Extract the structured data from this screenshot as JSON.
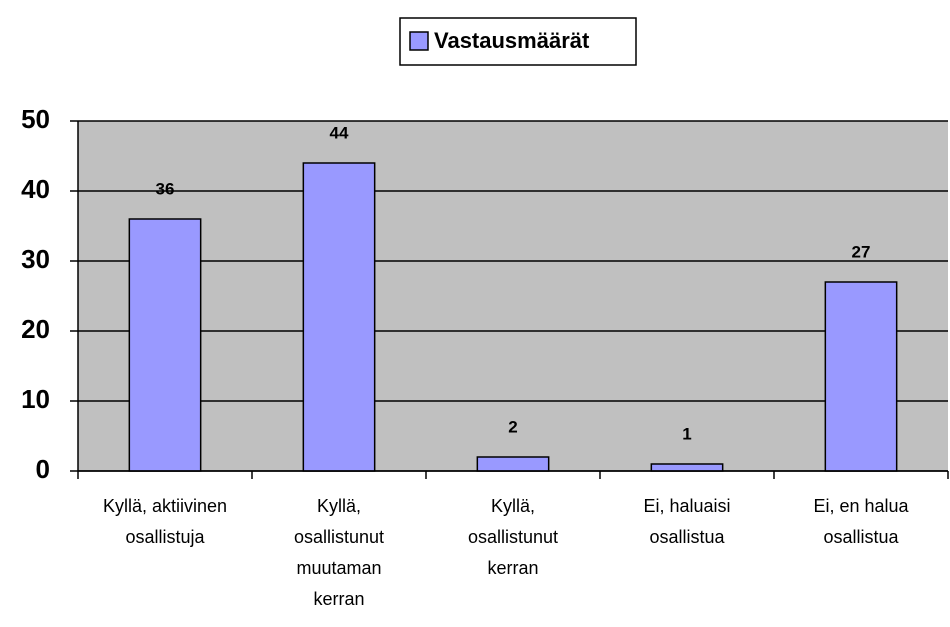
{
  "chart_data": {
    "type": "bar",
    "legend": "Vastausmäärät",
    "categories": [
      "Kyllä, aktiivinen\nosallistuja",
      "Kyllä,\nosallistunut\nmuutaman\nkerran",
      "Kyllä,\nosallistunut\nkerran",
      "Ei, haluaisi\nosallistua",
      "Ei, en halua\nosallistua"
    ],
    "values": [
      36,
      44,
      2,
      1,
      27
    ],
    "color": "#9999ff",
    "ylim": [
      0,
      50
    ],
    "yticks": [
      0,
      10,
      20,
      30,
      40,
      50
    ],
    "grid": true,
    "legend_position": "top"
  }
}
